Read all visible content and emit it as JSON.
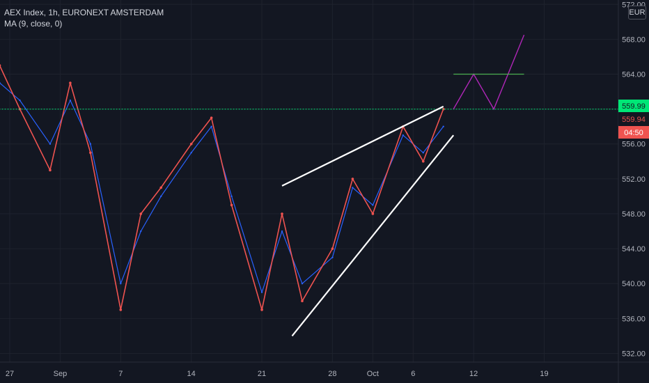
{
  "header": {
    "title": "AEX Index, 1h, EURONEXT AMSTERDAM",
    "indicator": "MA (9, close, 0)"
  },
  "currency": "EUR",
  "colors": {
    "background": "#131722",
    "grid": "#1e222d",
    "up": "#26a69a",
    "down": "#ef5350",
    "ma": "#2962ff",
    "resistance": "#00e676",
    "trendline": "#ffffff",
    "projection": "#b026b8",
    "target": "#4caf50"
  },
  "chart_data": {
    "type": "line",
    "title": "AEX Index, 1h, EURONEXT AMSTERDAM",
    "ylim": [
      531,
      572.5
    ],
    "y_ticks": [
      "532.00",
      "536.00",
      "540.00",
      "544.00",
      "548.00",
      "552.00",
      "556.00",
      "560.00",
      "564.00",
      "568.00",
      "572.00"
    ],
    "x_ticks": [
      "27",
      "Sep",
      "7",
      "14",
      "21",
      "28",
      "Oct",
      "6",
      "12",
      "19"
    ],
    "price_labels": {
      "resistance": "559.99",
      "last": "559.94",
      "countdown": "04:50"
    },
    "grid": true,
    "series": [
      {
        "kind": "close",
        "color": "#ef5350",
        "x": [
          "Aug 26",
          "Aug 28",
          "Aug 31",
          "Sep 2",
          "Sep 4",
          "Sep 7",
          "Sep 9",
          "Sep 11",
          "Sep 14",
          "Sep 16",
          "Sep 18",
          "Sep 21",
          "Sep 23",
          "Sep 25",
          "Sep 28",
          "Sep 30",
          "Oct 2",
          "Oct 5",
          "Oct 7",
          "Oct 9"
        ],
        "values": [
          565,
          560,
          553,
          563,
          555,
          537,
          548,
          551,
          556,
          559,
          549,
          537,
          548,
          538,
          544,
          552,
          548,
          558,
          554,
          560
        ]
      },
      {
        "name": "MA (9, close, 0)",
        "kind": "ma",
        "color": "#2962ff",
        "x": [
          "Aug 26",
          "Aug 28",
          "Aug 31",
          "Sep 2",
          "Sep 4",
          "Sep 7",
          "Sep 9",
          "Sep 11",
          "Sep 14",
          "Sep 16",
          "Sep 18",
          "Sep 21",
          "Sep 23",
          "Sep 25",
          "Sep 28",
          "Sep 30",
          "Oct 2",
          "Oct 5",
          "Oct 7",
          "Oct 9"
        ],
        "values": [
          563,
          561,
          556,
          561,
          556,
          540,
          546,
          550,
          555,
          558,
          550,
          539,
          546,
          540,
          543,
          551,
          549,
          557,
          555,
          558
        ]
      }
    ],
    "drawings": [
      {
        "kind": "horizontal",
        "price": 559.99,
        "x_from": "Aug 24",
        "x_to": "Oct 25",
        "style": "dashed",
        "color": "#00e676"
      },
      {
        "kind": "trendline",
        "points": [
          [
            "Sep 23",
            551.2
          ],
          [
            "Oct 9",
            560.3
          ]
        ],
        "color": "#ffffff"
      },
      {
        "kind": "trendline",
        "points": [
          [
            "Sep 24",
            534.0
          ],
          [
            "Oct 10",
            557.0
          ]
        ],
        "color": "#ffffff"
      },
      {
        "kind": "polyline",
        "points": [
          [
            "Oct 10",
            560.0
          ],
          [
            "Oct 12",
            564.0
          ],
          [
            "Oct 14",
            560.0
          ],
          [
            "Oct 17",
            568.5
          ]
        ],
        "color": "#b026b8"
      },
      {
        "kind": "segment",
        "price": 564.0,
        "x_from": "Oct 10",
        "x_to": "Oct 17",
        "color": "#4caf50"
      }
    ]
  }
}
